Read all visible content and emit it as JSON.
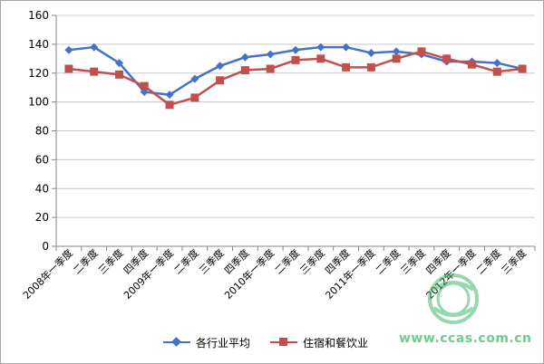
{
  "chart_data": {
    "type": "line",
    "categories": [
      "2008年一季度",
      "二季度",
      "三季度",
      "四季度",
      "2009年一季度",
      "二季度",
      "三季度",
      "四季度",
      "2010年一季度",
      "二季度",
      "三季度",
      "四季度",
      "2011年一季度",
      "二季度",
      "三季度",
      "四季度",
      "2012年一季度",
      "二季度",
      "三季度"
    ],
    "series": [
      {
        "name": "各行业平均",
        "color": "#4472c4",
        "marker": "diamond",
        "values": [
          136,
          138,
          127,
          107,
          105,
          116,
          125,
          131,
          133,
          136,
          138,
          138,
          134,
          135,
          133,
          128,
          128,
          127,
          123
        ]
      },
      {
        "name": "住宿和餐饮业",
        "color": "#c0504d",
        "marker": "square",
        "values": [
          123,
          121,
          119,
          111,
          98,
          103,
          115,
          122,
          123,
          129,
          130,
          124,
          124,
          130,
          135,
          130,
          126,
          121,
          123
        ]
      }
    ],
    "yticks": [
      "0",
      "20",
      "40",
      "60",
      "80",
      "100",
      "120",
      "140",
      "160"
    ],
    "ylim": [
      0,
      160
    ],
    "grid": true,
    "legend_position": "bottom"
  },
  "watermark": {
    "text": "www.ccas.com.cn",
    "color": "#3fb96a"
  }
}
